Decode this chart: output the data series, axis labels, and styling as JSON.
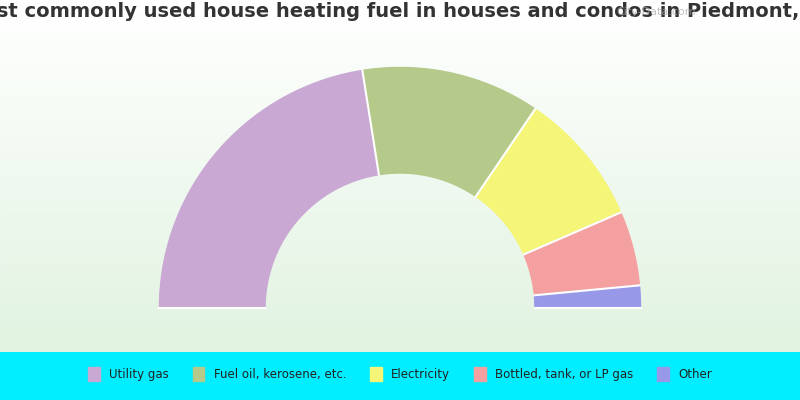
{
  "title": "Most commonly used house heating fuel in houses and condos in Piedmont, DE",
  "segments": [
    {
      "label": "Utility gas",
      "value": 45.0,
      "color": "#c9a8d4"
    },
    {
      "label": "Fuel oil, kerosene, etc.",
      "value": 24.0,
      "color": "#b5c98a"
    },
    {
      "label": "Electricity",
      "value": 18.0,
      "color": "#f5f577"
    },
    {
      "label": "Bottled, tank, or LP gas",
      "value": 10.0,
      "color": "#f5a0a0"
    },
    {
      "label": "Other",
      "value": 3.0,
      "color": "#9898e8"
    }
  ],
  "background_color": "#00eeff",
  "chart_bg_color": "#dff0df",
  "title_color": "#333333",
  "title_fontsize": 14,
  "watermark": "City-Data.com"
}
